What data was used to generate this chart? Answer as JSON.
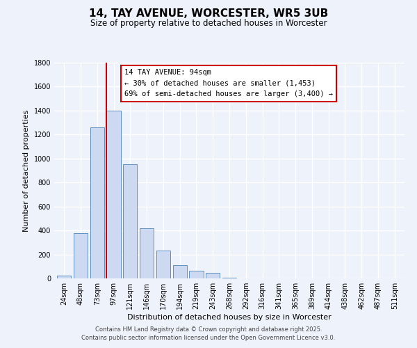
{
  "title": "14, TAY AVENUE, WORCESTER, WR5 3UB",
  "subtitle": "Size of property relative to detached houses in Worcester",
  "xlabel": "Distribution of detached houses by size in Worcester",
  "ylabel": "Number of detached properties",
  "bar_labels": [
    "24sqm",
    "48sqm",
    "73sqm",
    "97sqm",
    "121sqm",
    "146sqm",
    "170sqm",
    "194sqm",
    "219sqm",
    "243sqm",
    "268sqm",
    "292sqm",
    "316sqm",
    "341sqm",
    "365sqm",
    "389sqm",
    "414sqm",
    "438sqm",
    "462sqm",
    "487sqm",
    "511sqm"
  ],
  "bar_values": [
    25,
    380,
    1260,
    1400,
    950,
    420,
    235,
    110,
    65,
    45,
    5,
    2,
    1,
    0,
    0,
    0,
    0,
    0,
    0,
    0,
    0
  ],
  "bar_color": "#ccd9f0",
  "bar_edgecolor": "#6090c0",
  "ylim": [
    0,
    1800
  ],
  "yticks": [
    0,
    200,
    400,
    600,
    800,
    1000,
    1200,
    1400,
    1600,
    1800
  ],
  "property_line_idx": 3,
  "property_line_color": "#cc0000",
  "annotation_title": "14 TAY AVENUE: 94sqm",
  "annotation_line1": "← 30% of detached houses are smaller (1,453)",
  "annotation_line2": "69% of semi-detached houses are larger (3,400) →",
  "annotation_box_edgecolor": "#cc0000",
  "footer1": "Contains HM Land Registry data © Crown copyright and database right 2025.",
  "footer2": "Contains public sector information licensed under the Open Government Licence v3.0.",
  "background_color": "#eef2fb",
  "grid_color": "#ffffff",
  "title_fontsize": 11,
  "subtitle_fontsize": 8.5,
  "axis_label_fontsize": 8,
  "tick_fontsize": 7,
  "annotation_fontsize": 7.5,
  "footer_fontsize": 6
}
